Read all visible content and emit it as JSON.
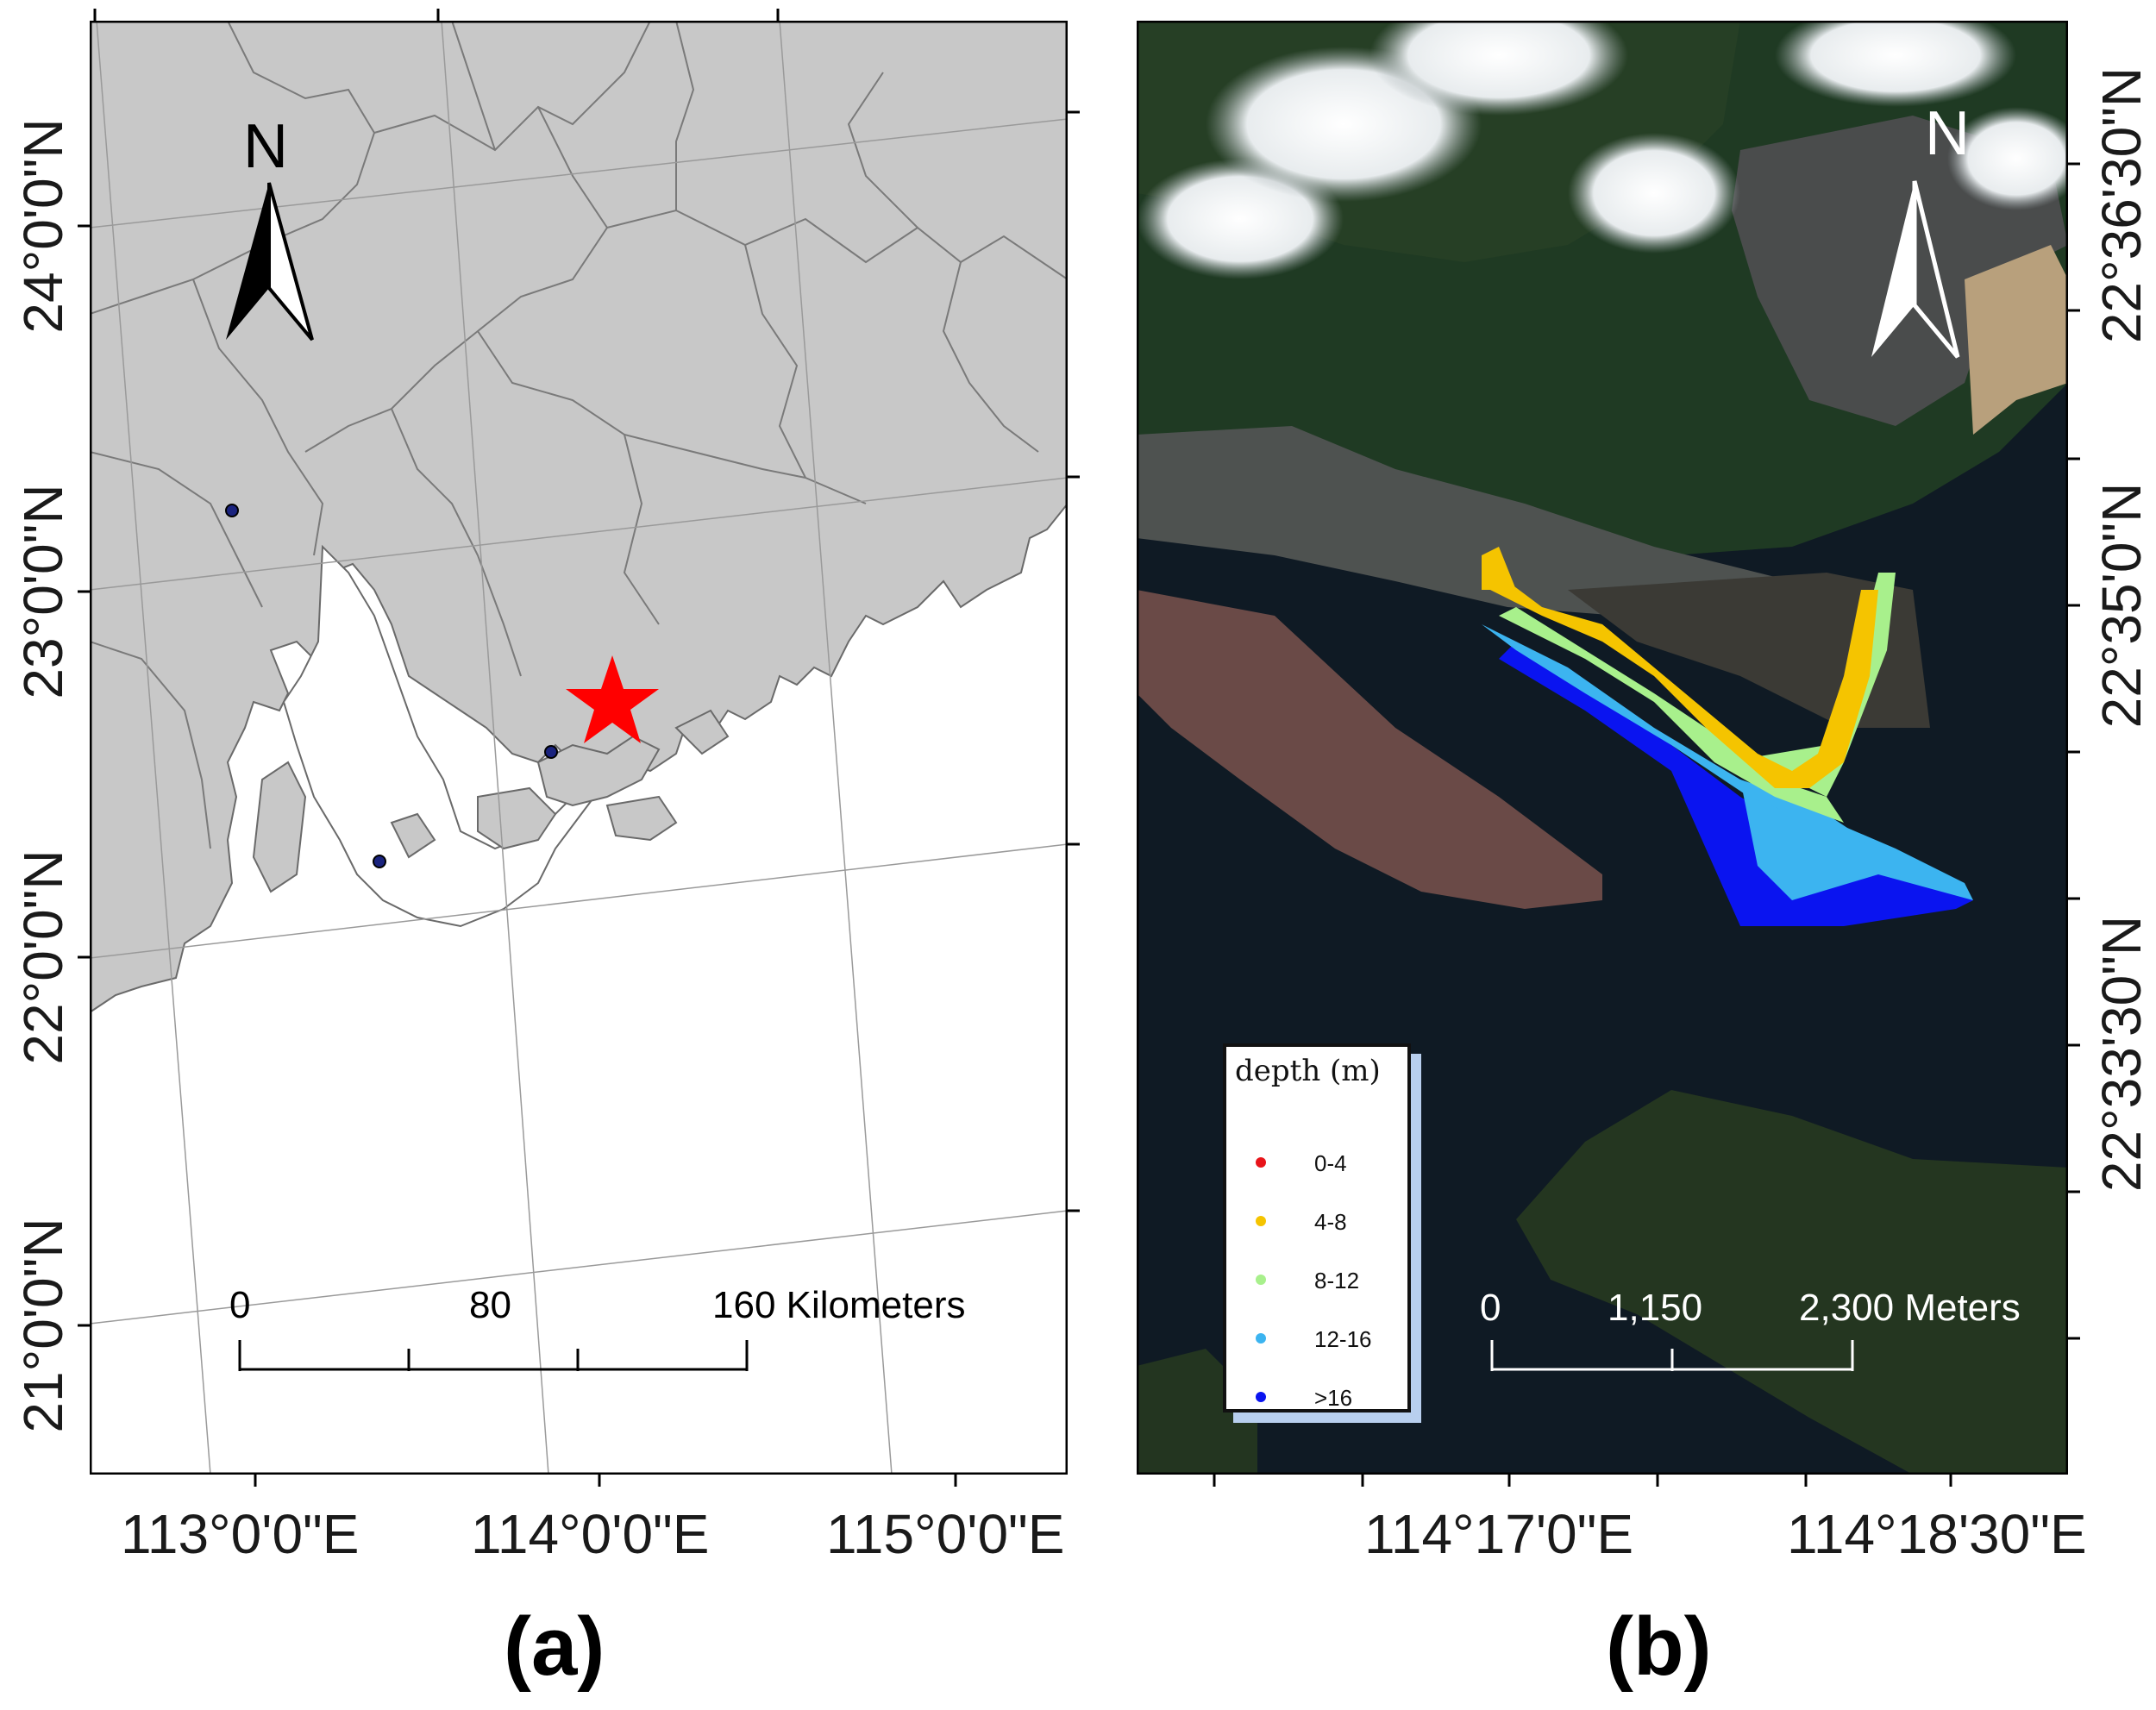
{
  "panel_a": {
    "caption": "(a)",
    "north_label": "N",
    "lat_labels": [
      "24°0'0\"N",
      "23°0'0\"N",
      "22°0'0\"N",
      "21°0'0\"N"
    ],
    "lon_labels": [
      "113°0'0\"E",
      "114°0'0\"E",
      "115°0'0\"E"
    ],
    "scale": {
      "label_0": "0",
      "label_mid": "80",
      "label_end": "160 Kilometers"
    },
    "land_color": "#c8c8c8",
    "marker_color": "#ff0000",
    "marker_icon": "star-icon"
  },
  "panel_b": {
    "caption": "(b)",
    "north_label": "N",
    "lat_labels": [
      "22°36'30\"N",
      "22°35'0\"N",
      "22°33'30\"N"
    ],
    "lon_labels": [
      "114°17'0\"E",
      "114°18'30\"E"
    ],
    "scale": {
      "label_0": "0",
      "label_mid": "1,150",
      "label_end": "2,300 Meters"
    },
    "legend": {
      "title": "depth (m)",
      "items": [
        {
          "label": "0-4",
          "color": "#e8141a"
        },
        {
          "label": "4-8",
          "color": "#f5c400"
        },
        {
          "label": "8-12",
          "color": "#a8f08c"
        },
        {
          "label": "12-16",
          "color": "#3cb4f0"
        },
        {
          "label": ">16",
          "color": "#0a14f0"
        }
      ]
    }
  }
}
